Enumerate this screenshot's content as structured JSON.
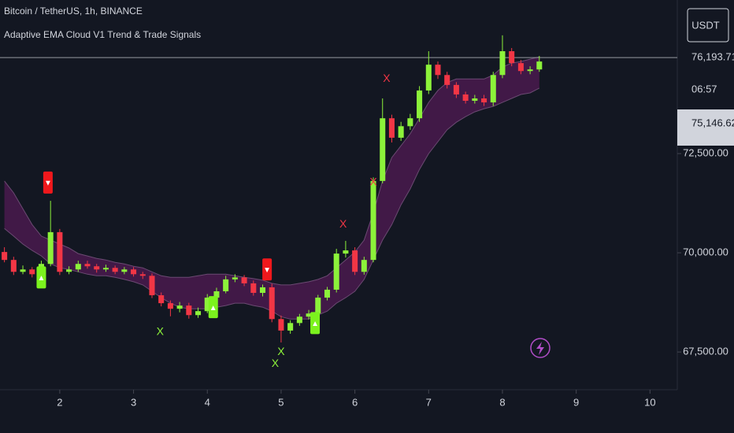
{
  "chart_data": {
    "type": "candlestick",
    "title": "Bitcoin / TetherUS, 1h, BINANCE",
    "subtitle": "Adaptive EMA Cloud V1 Trend & Trade Signals",
    "currency_button": "USDT",
    "last_price_label": "76,193.71",
    "countdown": "06:57",
    "crosshair_label": "75,146.62",
    "x": [
      1.25,
      1.375,
      1.5,
      1.625,
      1.75,
      1.875,
      2.0,
      2.125,
      2.25,
      2.375,
      2.5,
      2.625,
      2.75,
      2.875,
      3.0,
      3.125,
      3.25,
      3.375,
      3.5,
      3.625,
      3.75,
      3.875,
      4.0,
      4.125,
      4.25,
      4.375,
      4.5,
      4.625,
      4.75,
      4.875,
      5.0,
      5.125,
      5.25,
      5.375,
      5.5,
      5.625,
      5.75,
      5.875,
      6.0,
      6.125,
      6.25,
      6.375,
      6.5,
      6.625,
      6.75,
      6.875,
      7.0,
      7.125,
      7.25,
      7.375,
      7.5,
      7.625,
      7.75,
      7.875,
      8.0,
      8.125,
      8.25,
      8.375,
      8.5
    ],
    "open": [
      70020,
      69820,
      69520,
      69580,
      69460,
      69720,
      70520,
      69520,
      69580,
      69720,
      69660,
      69580,
      69620,
      69520,
      69580,
      69460,
      69420,
      68930,
      68730,
      68590,
      68670,
      68430,
      68530,
      68870,
      69030,
      69330,
      69380,
      69230,
      68990,
      69130,
      68330,
      68040,
      68230,
      68390,
      68470,
      68870,
      69070,
      69980,
      70060,
      69520,
      69820,
      71810,
      73390,
      72900,
      73190,
      73390,
      74090,
      74740,
      74480,
      74230,
      73990,
      73830,
      73890,
      73790,
      74480,
      75080,
      74780,
      74580,
      74620
    ],
    "high": [
      70140,
      69900,
      69680,
      69640,
      69800,
      71310,
      70600,
      69660,
      69800,
      69800,
      69720,
      69700,
      69680,
      69640,
      69640,
      69520,
      69480,
      69000,
      68800,
      68760,
      68740,
      68620,
      68960,
      69120,
      69420,
      69460,
      69440,
      69300,
      69200,
      69220,
      68420,
      68300,
      68460,
      68560,
      68940,
      69140,
      70100,
      70300,
      70140,
      69900,
      71900,
      73890,
      73480,
      73300,
      73500,
      74200,
      75080,
      74820,
      74560,
      74300,
      74060,
      73980,
      73980,
      74560,
      75480,
      75160,
      74860,
      74700,
      74960
    ],
    "low": [
      69760,
      69440,
      69460,
      69380,
      69400,
      69660,
      69440,
      69460,
      69520,
      69600,
      69500,
      69520,
      69460,
      69460,
      69400,
      69340,
      68860,
      68650,
      68400,
      68500,
      68340,
      68360,
      68480,
      68800,
      68980,
      69260,
      69160,
      68920,
      68900,
      68250,
      67740,
      67960,
      68160,
      68320,
      68400,
      68800,
      69000,
      69880,
      69440,
      69450,
      69760,
      71750,
      72780,
      72820,
      73100,
      73300,
      74000,
      74380,
      74140,
      73900,
      73760,
      73760,
      73700,
      73700,
      74400,
      74700,
      74500,
      74500,
      74560
    ],
    "close": [
      69820,
      69520,
      69580,
      69460,
      69720,
      70520,
      69520,
      69580,
      69720,
      69660,
      69580,
      69620,
      69520,
      69580,
      69460,
      69420,
      68930,
      68730,
      68590,
      68670,
      68430,
      68530,
      68870,
      69030,
      69330,
      69380,
      69230,
      68990,
      69130,
      68330,
      68040,
      68230,
      68390,
      68470,
      68870,
      69070,
      69980,
      70060,
      69520,
      69820,
      71810,
      73390,
      72900,
      73190,
      73390,
      74090,
      74740,
      74480,
      74230,
      73990,
      73830,
      73890,
      73790,
      74480,
      75080,
      74780,
      74580,
      74620,
      74820
    ],
    "up_color": "#8cf23a",
    "down_color": "#f23645",
    "cloud_upper": [
      71810,
      71510,
      71110,
      70710,
      70420,
      70320,
      70220,
      70120,
      69980,
      69920,
      69860,
      69820,
      69760,
      69720,
      69660,
      69620,
      69520,
      69420,
      69380,
      69380,
      69380,
      69420,
      69460,
      69460,
      69460,
      69420,
      69380,
      69350,
      69310,
      69230,
      69190,
      69190,
      69230,
      69270,
      69330,
      69420,
      69620,
      69820,
      70020,
      70320,
      71010,
      71810,
      72400,
      72700,
      73000,
      73390,
      73790,
      74090,
      74290,
      74380,
      74380,
      74380,
      74380,
      74480,
      74680,
      74780,
      74820,
      74880,
      74940
    ],
    "cloud_lower": [
      70610,
      70420,
      70220,
      70060,
      69920,
      69720,
      69620,
      69580,
      69520,
      69460,
      69420,
      69420,
      69380,
      69330,
      69270,
      69190,
      69030,
      68870,
      68730,
      68630,
      68590,
      68590,
      68590,
      68630,
      68670,
      68730,
      68730,
      68670,
      68630,
      68530,
      68390,
      68330,
      68330,
      68330,
      68430,
      68530,
      68730,
      68870,
      69030,
      69330,
      69820,
      70320,
      70710,
      71210,
      71610,
      72100,
      72500,
      72800,
      73100,
      73290,
      73430,
      73550,
      73630,
      73690,
      73790,
      73890,
      73990,
      74030,
      74150
    ],
    "cloud_color": "#4a1a4e",
    "buy_glyph": "▲",
    "sell_glyph": "▼",
    "exit_glyph": "X",
    "buy_signals": [
      {
        "x": 1.75,
        "price": 69380
      },
      {
        "x": 4.08,
        "price": 68630
      },
      {
        "x": 5.46,
        "price": 68230
      }
    ],
    "sell_signals": [
      {
        "x": 1.84,
        "price": 71770
      },
      {
        "x": 4.81,
        "price": 69580
      }
    ],
    "exit_long": [
      {
        "x": 3.36,
        "price": 68000
      },
      {
        "x": 4.92,
        "price": 67200
      },
      {
        "x": 5.0,
        "price": 67500
      }
    ],
    "exit_short": [
      {
        "x": 5.84,
        "price": 70710
      },
      {
        "x": 6.25,
        "price": 71770
      },
      {
        "x": 6.43,
        "price": 74380
      }
    ],
    "price_line": 74920,
    "xlim": [
      1.19,
      10.37
    ],
    "xticks": [
      2,
      3,
      4,
      5,
      6,
      7,
      8,
      9,
      10
    ],
    "ylim": [
      66550,
      76370
    ],
    "yticks": [
      {
        "value": 67500,
        "label": "67,500.00"
      },
      {
        "value": 70000,
        "label": "70,000.00"
      },
      {
        "value": 72500,
        "label": "72,500.00"
      }
    ]
  }
}
